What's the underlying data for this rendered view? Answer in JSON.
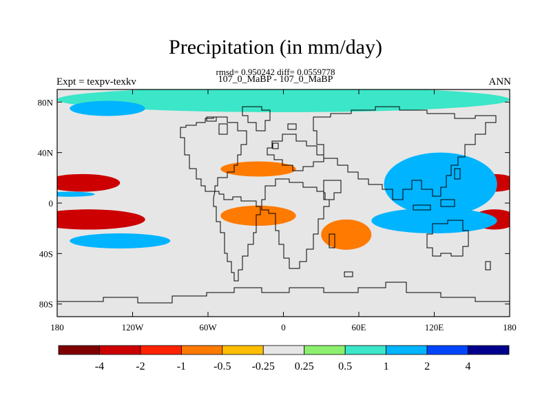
{
  "title": "Precipitation (in mm/day)",
  "stats_line": "rmsd= 0.950242 diff= 0.0559778",
  "subtitle": "107_0_MaBP - 107_0_MaBP",
  "left_label": "Expt = texpv-texkv",
  "right_label": "ANN",
  "chart_data": {
    "type": "contour-map",
    "projection": "cylindrical-equidistant",
    "lon_range": [
      -180,
      180
    ],
    "lat_range": [
      -90,
      90
    ],
    "x_ticks": [
      {
        "value": -180,
        "label": "180"
      },
      {
        "value": -120,
        "label": "120W"
      },
      {
        "value": -60,
        "label": "60W"
      },
      {
        "value": 0,
        "label": "0"
      },
      {
        "value": 60,
        "label": "60E"
      },
      {
        "value": 120,
        "label": "120E"
      },
      {
        "value": 180,
        "label": "180"
      }
    ],
    "y_ticks": [
      {
        "value": 80,
        "label": "80N"
      },
      {
        "value": 40,
        "label": "40N"
      },
      {
        "value": 0,
        "label": "0"
      },
      {
        "value": -40,
        "label": "40S"
      },
      {
        "value": -80,
        "label": "80S"
      }
    ],
    "colorbar": {
      "colors": [
        "#7f0000",
        "#cc0000",
        "#ff2200",
        "#ff7a00",
        "#ffbf00",
        "#e6e6e6",
        "#8cf06e",
        "#3ce6c8",
        "#00b4ff",
        "#0046ff",
        "#00008c"
      ],
      "levels": [
        "-4",
        "-2",
        "-1",
        "-0.5",
        "-0.25",
        "0.25",
        "0.5",
        "1",
        "2",
        "4"
      ]
    },
    "features": [
      {
        "level": "-4",
        "lon": -165,
        "lat": -13,
        "lon_extent": 25,
        "lat_extent": 5
      },
      {
        "level": "-4",
        "lon": -165,
        "lat": 15,
        "lon_extent": 20,
        "lat_extent": 4
      },
      {
        "level": "-4",
        "lon": 172,
        "lat": -13,
        "lon_extent": 12,
        "lat_extent": 5
      },
      {
        "level": "-4",
        "lon": 172,
        "lat": 16,
        "lon_extent": 12,
        "lat_extent": 4
      },
      {
        "level": "-2",
        "lon": -155,
        "lat": -13,
        "lon_extent": 45,
        "lat_extent": 8
      },
      {
        "level": "-2",
        "lon": -160,
        "lat": 16,
        "lon_extent": 30,
        "lat_extent": 7
      },
      {
        "level": "-2",
        "lon": 168,
        "lat": -13,
        "lon_extent": 18,
        "lat_extent": 8
      },
      {
        "level": "-2",
        "lon": 168,
        "lat": 16,
        "lon_extent": 18,
        "lat_extent": 7
      },
      {
        "level": "1",
        "lon": -170,
        "lat": 7,
        "lon_extent": 20,
        "lat_extent": 2
      },
      {
        "level": "2",
        "lon": 120,
        "lat": -12,
        "lon_extent": 30,
        "lat_extent": 5
      },
      {
        "level": "2",
        "lon": 125,
        "lat": 25,
        "lon_extent": 20,
        "lat_extent": 12
      },
      {
        "level": "1",
        "lon": 125,
        "lat": 15,
        "lon_extent": 45,
        "lat_extent": 25
      },
      {
        "level": "1",
        "lon": 120,
        "lat": -14,
        "lon_extent": 50,
        "lat_extent": 10
      },
      {
        "level": "-0.5",
        "lon": -20,
        "lat": 27,
        "lon_extent": 30,
        "lat_extent": 6
      },
      {
        "level": "-0.5",
        "lon": -20,
        "lat": -10,
        "lon_extent": 30,
        "lat_extent": 8
      },
      {
        "level": "-0.5",
        "lon": 50,
        "lat": -25,
        "lon_extent": 20,
        "lat_extent": 12
      },
      {
        "level": "0.5",
        "lon": 0,
        "lat": 82,
        "lon_extent": 180,
        "lat_extent": 10
      },
      {
        "level": "1",
        "lon": -140,
        "lat": 75,
        "lon_extent": 30,
        "lat_extent": 6
      },
      {
        "level": "1",
        "lon": -130,
        "lat": -30,
        "lon_extent": 40,
        "lat_extent": 6
      }
    ]
  }
}
